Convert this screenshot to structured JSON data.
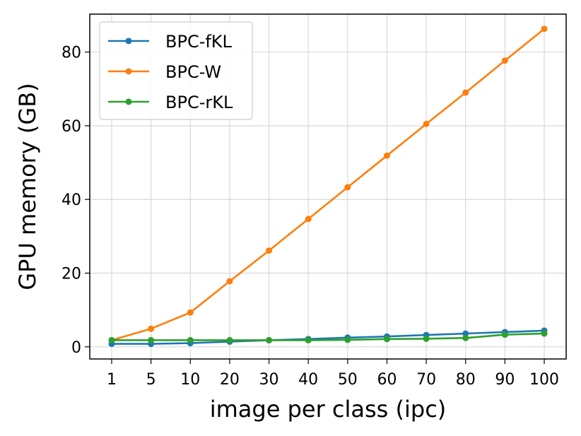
{
  "chart_data": {
    "type": "line",
    "xlabel": "image per class (ipc)",
    "ylabel": "GPU memory (GB)",
    "categories": [
      "1",
      "5",
      "10",
      "20",
      "30",
      "40",
      "50",
      "60",
      "70",
      "80",
      "90",
      "100"
    ],
    "ylim": [
      -3.3,
      90.3
    ],
    "yticks": [
      0,
      20,
      40,
      60,
      80
    ],
    "grid": true,
    "legend_position": "top-left",
    "series": [
      {
        "name": "BPC-fKL",
        "color": "#1f77b4",
        "values": [
          0.8,
          0.8,
          1.0,
          1.4,
          1.8,
          2.1,
          2.5,
          2.8,
          3.2,
          3.6,
          4.0,
          4.4
        ]
      },
      {
        "name": "BPC-W",
        "color": "#ff7f0e",
        "values": [
          1.8,
          4.9,
          9.3,
          17.8,
          26.1,
          34.7,
          43.3,
          51.9,
          60.5,
          69.0,
          77.7,
          86.3
        ]
      },
      {
        "name": "BPC-rKL",
        "color": "#2ca02c",
        "values": [
          1.8,
          1.8,
          1.8,
          1.8,
          1.8,
          1.8,
          1.9,
          2.1,
          2.2,
          2.4,
          3.3,
          3.6
        ]
      }
    ]
  }
}
